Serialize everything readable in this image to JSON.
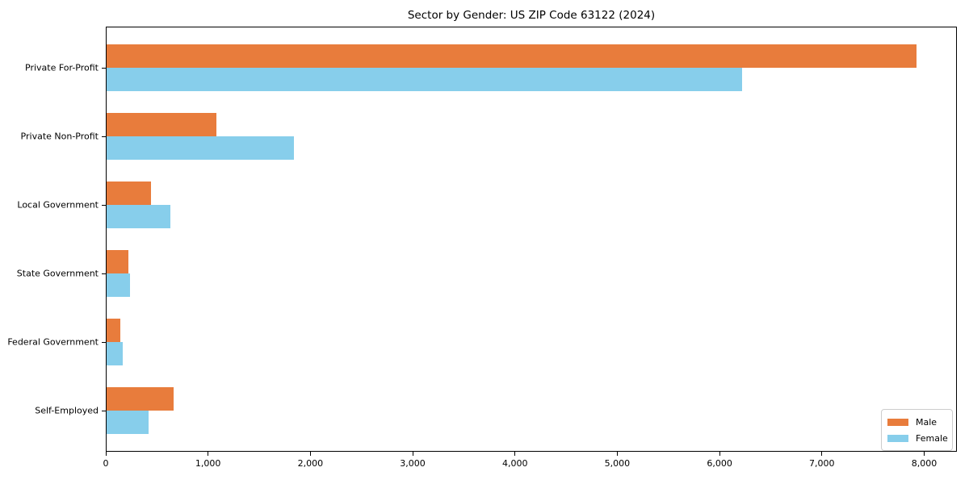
{
  "chart_data": {
    "type": "bar",
    "orientation": "horizontal",
    "title": "Sector by Gender: US ZIP Code 63122 (2024)",
    "categories": [
      "Private For-Profit",
      "Private Non-Profit",
      "Local Government",
      "State Government",
      "Federal Government",
      "Self-Employed"
    ],
    "series": [
      {
        "name": "Male",
        "color": "#e87c3c",
        "values": [
          7920,
          1070,
          435,
          215,
          135,
          655
        ]
      },
      {
        "name": "Female",
        "color": "#87ceeb",
        "values": [
          6210,
          1830,
          620,
          225,
          155,
          410
        ]
      }
    ],
    "xlabel": "",
    "ylabel": "",
    "xlim": [
      0,
      8320
    ],
    "xticks": [
      0,
      1000,
      2000,
      3000,
      4000,
      5000,
      6000,
      7000,
      8000
    ],
    "xtick_labels": [
      "0",
      "1,000",
      "2,000",
      "3,000",
      "4,000",
      "5,000",
      "6,000",
      "7,000",
      "8,000"
    ],
    "legend": {
      "position": "lower-right",
      "entries": [
        "Male",
        "Female"
      ]
    },
    "grid": false
  },
  "colors": {
    "background": "#ffffff",
    "spine": "#000000",
    "legend_border": "#cccccc",
    "text": "#000000",
    "male": "#e87c3c",
    "female": "#87ceeb"
  }
}
